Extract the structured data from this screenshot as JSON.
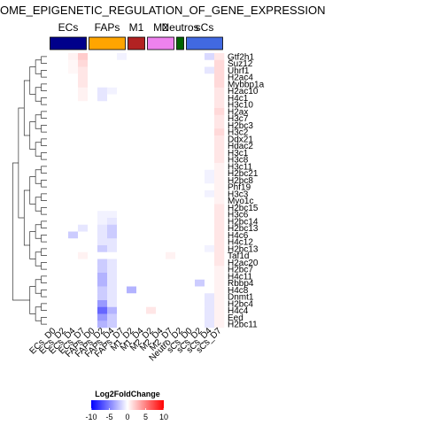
{
  "chart_data": {
    "type": "heatmap",
    "title": "OME_EPIGENETIC_REGULATION_OF_GENE_EXPRESSION",
    "column_groups": [
      {
        "name": "ECs",
        "color": "#00008B",
        "columns": [
          "ECs_D0",
          "ECs_D2",
          "ECs_D4",
          "ECs_D7"
        ]
      },
      {
        "name": "FAPs",
        "color": "#FFA500",
        "columns": [
          "FAPs_D0",
          "FAPs_D2",
          "FAPs_D4",
          "FAPs_D7"
        ]
      },
      {
        "name": "M1",
        "color": "#B22222",
        "columns": [
          "M1_D2",
          "M1_D4"
        ]
      },
      {
        "name": "M2",
        "color": "#EE82EE",
        "columns": [
          "M2_D2",
          "M2_D4",
          "M2_D7"
        ]
      },
      {
        "name": "Neutros",
        "color": "#006400",
        "columns": [
          "Neutro_D2"
        ]
      },
      {
        "name": "sCs",
        "color": "#4169E1",
        "columns": [
          "sCs_D0",
          "sCs_D2",
          "sCs_D4",
          "sCs_D7"
        ]
      }
    ],
    "columns": [
      "ECs_D0",
      "ECs_D2",
      "ECs_D4",
      "ECs_D7",
      "FAPs_D0",
      "FAPs_D2",
      "FAPs_D4",
      "FAPs_D7",
      "M1_D2",
      "M1_D4",
      "M2_D2",
      "M2_D4",
      "M2_D7",
      "Neutro_D2",
      "sCs_D0",
      "sCs_D2",
      "sCs_D4",
      "sCs_D7"
    ],
    "rows": [
      "Gtf2h1",
      "Suz12",
      "Uhrf1",
      "H2ac4",
      "Mybbp1a",
      "H2ac10",
      "H4c1",
      "H3c10",
      "H2ax",
      "H3c7",
      "H2bc3",
      "H3c2",
      "Ddx21",
      "Hdac2",
      "H3c1",
      "H3c8",
      "H3c11",
      "H2bc21",
      "H2bc8",
      "Phf19",
      "H3c3",
      "Myo1c",
      "H2bc15",
      "H3c6",
      "H2bc14",
      "H2bc13",
      "H4c6",
      "H4c12",
      "H2bc13",
      "Taf1d",
      "H2ac20",
      "H2bc7",
      "H4c11",
      "Rbbp4",
      "H4c8",
      "Dnmt1",
      "H2bc4",
      "H4c4",
      "Eed",
      "H2bc11"
    ],
    "values": [
      [
        0,
        0,
        0.5,
        2,
        0,
        0,
        0,
        -0.5,
        0,
        0,
        0,
        0,
        0,
        0,
        0,
        0,
        -1.5,
        1
      ],
      [
        0,
        0,
        0.3,
        1.5,
        0,
        0,
        0,
        0,
        0,
        0,
        0,
        0,
        0,
        0,
        0,
        0,
        0,
        1.5
      ],
      [
        0,
        0,
        0.3,
        1,
        0,
        0,
        0,
        0,
        0,
        0,
        0,
        0,
        0,
        0,
        0,
        0,
        -1,
        1.5
      ],
      [
        0,
        0,
        0,
        1,
        0,
        0,
        0,
        0,
        0,
        0,
        0,
        0,
        0,
        0,
        0,
        0,
        0,
        1.5
      ],
      [
        0,
        0,
        0,
        1,
        0,
        0,
        0,
        0,
        0,
        0,
        0,
        0,
        0,
        0,
        0,
        0,
        0,
        1.5
      ],
      [
        0,
        0,
        0,
        0.5,
        0,
        -1,
        -0.5,
        0,
        0,
        0,
        0,
        0,
        0,
        0,
        0,
        0,
        0,
        1
      ],
      [
        0,
        0,
        0,
        0.5,
        0,
        -1,
        0,
        0,
        0,
        0,
        0,
        0,
        0,
        0,
        0,
        0,
        0,
        1
      ],
      [
        0,
        0,
        0,
        0,
        0,
        0,
        0,
        0,
        0,
        0,
        0,
        0,
        0,
        0,
        0,
        0,
        0,
        1
      ],
      [
        0,
        0,
        0,
        0,
        0,
        0,
        0,
        0,
        0,
        0,
        0,
        0,
        0,
        0,
        0,
        0,
        0,
        1.5
      ],
      [
        0,
        0,
        0,
        0,
        0,
        0,
        0,
        0,
        0,
        0,
        0,
        0,
        0,
        0,
        0,
        0,
        0,
        1
      ],
      [
        0,
        0,
        0,
        0,
        0,
        0,
        0,
        0,
        0,
        0,
        0,
        0,
        0,
        0,
        0,
        0,
        0,
        1
      ],
      [
        0,
        0,
        0,
        0,
        0,
        0,
        0,
        0,
        0,
        0,
        0,
        0,
        0,
        0,
        0,
        0,
        0,
        1.5
      ],
      [
        0,
        0,
        0,
        0,
        0,
        0,
        0,
        0,
        0,
        0,
        0,
        0,
        0,
        0,
        0,
        0,
        0,
        1
      ],
      [
        0,
        0,
        0,
        0,
        0,
        0,
        0,
        0,
        0,
        0,
        0,
        0,
        0,
        0,
        0,
        0,
        0,
        1
      ],
      [
        0,
        0,
        0,
        0,
        0,
        0,
        0,
        0,
        0,
        0,
        0,
        0,
        0,
        0,
        0,
        0,
        0,
        1
      ],
      [
        0,
        0,
        0,
        0,
        0,
        0,
        0,
        0,
        0,
        0,
        0,
        0,
        0,
        0,
        0,
        0,
        0,
        1
      ],
      [
        0,
        0,
        0,
        0,
        0,
        0,
        0,
        0,
        0,
        0,
        0,
        0,
        0,
        0,
        0,
        0,
        0,
        0.5
      ],
      [
        0,
        0,
        0,
        0,
        0,
        0,
        0,
        0,
        0,
        0,
        0,
        0,
        0,
        0,
        0,
        0,
        -0.5,
        0.5
      ],
      [
        0,
        0,
        0,
        0,
        0,
        0,
        0,
        0,
        0,
        0,
        0,
        0,
        0,
        0,
        0,
        0,
        -0.5,
        0.5
      ],
      [
        0,
        0,
        0,
        0,
        0,
        0,
        0,
        0,
        0,
        0,
        0,
        0,
        0,
        0,
        0,
        0,
        0,
        0.5
      ],
      [
        0,
        0,
        0,
        0,
        0,
        0,
        0,
        0,
        0,
        0,
        0,
        0,
        0,
        0,
        0,
        0,
        -0.5,
        0.5
      ],
      [
        0,
        0,
        0,
        0,
        0,
        0,
        0,
        0,
        0,
        0,
        0,
        0,
        0,
        0,
        0,
        0,
        0,
        0.5
      ],
      [
        0,
        0,
        0,
        0,
        0,
        0,
        0,
        0,
        0,
        0,
        0,
        0,
        0,
        0,
        0,
        0,
        0,
        1
      ],
      [
        0,
        0,
        0,
        0,
        0,
        -0.5,
        -0.5,
        0,
        0,
        0,
        0,
        0,
        0,
        0,
        0,
        0,
        0,
        1
      ],
      [
        0,
        0,
        0,
        0,
        0,
        -0.5,
        -1,
        0,
        0,
        0,
        0,
        0,
        0,
        0,
        0,
        0,
        0,
        1
      ],
      [
        0,
        0,
        0,
        -1,
        0,
        -1,
        -2,
        0,
        0,
        0,
        0,
        0,
        0,
        0,
        0,
        0,
        0,
        1
      ],
      [
        0,
        0,
        -2,
        0,
        0,
        -1,
        -2,
        0,
        0,
        0,
        0,
        0,
        0,
        0,
        0,
        0,
        0,
        1
      ],
      [
        0,
        0,
        0,
        0,
        0,
        -1,
        -1,
        0,
        0,
        0,
        0,
        0,
        0,
        0,
        0,
        0,
        0,
        1
      ],
      [
        0,
        0,
        0,
        0,
        0,
        -2,
        -1,
        0,
        0,
        0,
        0,
        0,
        0,
        0,
        0,
        0,
        -0.5,
        1
      ],
      [
        0,
        0,
        0,
        0.5,
        0,
        0,
        0,
        0,
        0,
        0,
        0,
        0,
        0.5,
        0,
        0,
        0,
        0,
        1
      ],
      [
        0,
        0,
        0,
        0,
        0,
        -2,
        -1,
        0,
        0,
        0,
        0,
        0,
        0,
        0,
        0,
        0,
        0,
        1
      ],
      [
        0,
        0,
        0,
        0,
        0,
        -2,
        -1,
        0,
        0,
        0,
        0,
        0,
        0,
        0,
        0,
        0,
        0,
        0.5
      ],
      [
        0,
        0,
        0,
        0,
        0,
        -3,
        -1,
        0,
        0,
        0,
        0,
        0,
        0,
        0,
        0,
        0,
        0,
        0.5
      ],
      [
        0,
        0,
        0,
        0,
        0,
        -3,
        -1,
        0,
        0,
        0,
        0,
        0,
        0,
        0,
        0,
        -2,
        0,
        0.5
      ],
      [
        0,
        0,
        0,
        0,
        0,
        -2,
        -1,
        0,
        -3,
        0,
        0,
        0,
        0,
        0,
        0,
        0,
        0,
        0.5
      ],
      [
        0,
        0,
        0,
        0,
        0,
        -2,
        -1,
        0,
        0,
        0,
        0,
        0,
        0,
        0,
        0,
        0,
        -1,
        0.5
      ],
      [
        0,
        0,
        0,
        0,
        0,
        -4,
        -1,
        0,
        0,
        0,
        0,
        0,
        0,
        0,
        0,
        0,
        -1,
        0.5
      ],
      [
        0,
        0,
        0,
        0,
        0,
        -6,
        -3,
        0,
        0,
        0,
        1,
        0,
        0,
        0,
        0,
        0,
        -1,
        0.5
      ],
      [
        0,
        0,
        0,
        0,
        0,
        -4,
        -2,
        0,
        0,
        0,
        0,
        0,
        0,
        0,
        0,
        0,
        -1,
        0.5
      ],
      [
        0,
        0,
        0,
        0,
        0,
        -3,
        -2,
        0,
        0,
        0,
        0,
        0,
        0,
        0,
        0,
        0,
        -1,
        0.5
      ]
    ],
    "legend": {
      "title": "Log2FoldChange",
      "ticks": [
        -10,
        -5,
        0,
        5,
        10
      ],
      "range": [
        -10,
        10
      ],
      "colors": {
        "low": "#0000FF",
        "mid": "#FFFFFF",
        "high": "#FF0000"
      }
    },
    "dendrogram": "row"
  }
}
